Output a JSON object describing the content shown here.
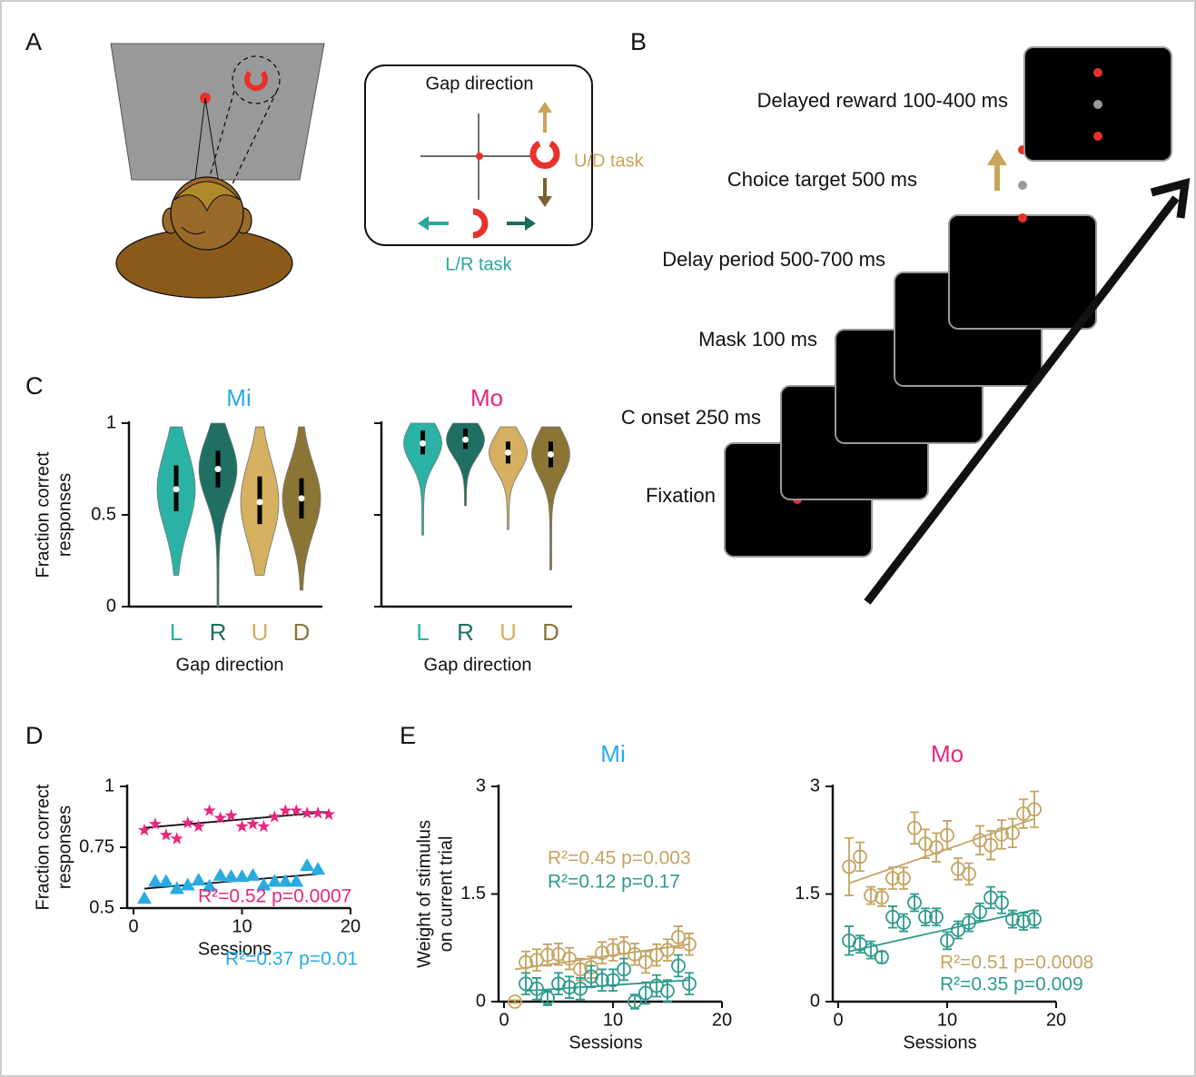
{
  "panel_labels": [
    "A",
    "B",
    "C",
    "D",
    "E"
  ],
  "diagram_a": {
    "gap_direction": "Gap direction",
    "ud_task": "U/D task",
    "lr_task": "L/R task"
  },
  "diagram_b": {
    "steps": [
      "Delayed reward 100-400 ms",
      "Choice target 500 ms",
      "Delay period 500-700 ms",
      "Mask 100 ms",
      "C onset 250 ms",
      "Fixation"
    ]
  },
  "chart_data": [
    {
      "type": "violin",
      "title": "Mi",
      "title_color": "#29abe2",
      "categories": [
        "L",
        "R",
        "U",
        "D"
      ],
      "colors": [
        "#2ab3a5",
        "#1f6f62",
        "#d4b060",
        "#8b7535"
      ],
      "median": [
        0.64,
        0.75,
        0.57,
        0.59
      ],
      "q1": [
        0.52,
        0.65,
        0.45,
        0.48
      ],
      "q3": [
        0.77,
        0.85,
        0.71,
        0.7
      ],
      "min": [
        0.17,
        0,
        0.17,
        0.09
      ],
      "max": [
        0.98,
        1,
        0.98,
        0.98
      ],
      "ylim": [
        0,
        1
      ],
      "yticks": [
        0,
        0.5,
        1
      ],
      "ytick_labels": true,
      "xlabel": "Gap direction",
      "ylabel": [
        "Fraction correct",
        "responses"
      ]
    },
    {
      "type": "violin",
      "title": "Mo",
      "title_color": "#e6287e",
      "categories": [
        "L",
        "R",
        "U",
        "D"
      ],
      "colors": [
        "#2ab3a5",
        "#1f6f62",
        "#d4b060",
        "#8b7535"
      ],
      "median": [
        0.89,
        0.91,
        0.84,
        0.83
      ],
      "q1": [
        0.83,
        0.86,
        0.78,
        0.76
      ],
      "q3": [
        0.96,
        0.97,
        0.9,
        0.9
      ],
      "min": [
        0.39,
        0.55,
        0.42,
        0.2
      ],
      "max": [
        1,
        1,
        0.98,
        0.98
      ],
      "ylim": [
        0,
        1
      ],
      "yticks": [
        0,
        0.5,
        1
      ],
      "ytick_labels": false,
      "xlabel": "Gap direction"
    },
    {
      "type": "scatter",
      "xlim": [
        0,
        20
      ],
      "xticks": [
        0,
        10,
        20
      ],
      "ylim": [
        0.5,
        1
      ],
      "yticks": [
        0.5,
        0.75,
        1
      ],
      "xlabel": "Sessions",
      "ylabel": [
        "Fraction correct",
        "responses"
      ],
      "series": [
        {
          "name": "Mo",
          "color": "#e6287e",
          "marker": "star",
          "x": [
            1,
            2,
            3,
            4,
            5,
            6,
            7,
            8,
            9,
            10,
            11,
            12,
            13,
            14,
            15,
            16,
            17,
            18
          ],
          "values": [
            0.82,
            0.845,
            0.8,
            0.785,
            0.85,
            0.835,
            0.9,
            0.87,
            0.88,
            0.835,
            0.845,
            0.835,
            0.875,
            0.9,
            0.9,
            0.89,
            0.89,
            0.885
          ],
          "fit": {
            "x": [
              1,
              18
            ],
            "y": [
              0.83,
              0.895
            ]
          }
        },
        {
          "name": "Mi",
          "color": "#29abe2",
          "marker": "triangle",
          "x": [
            1,
            2,
            3,
            4,
            5,
            6,
            7,
            8,
            9,
            10,
            11,
            12,
            13,
            14,
            15,
            16,
            17
          ],
          "values": [
            0.54,
            0.61,
            0.61,
            0.58,
            0.595,
            0.615,
            0.59,
            0.635,
            0.63,
            0.63,
            0.635,
            0.595,
            0.61,
            0.61,
            0.61,
            0.675,
            0.66
          ],
          "fit": {
            "x": [
              1,
              17
            ],
            "y": [
              0.58,
              0.64
            ]
          }
        }
      ],
      "annotations": [
        {
          "text": "R²=0.52 p=0.0007",
          "color": "#e6287e"
        },
        {
          "text": "R²=0.37 p=0.01",
          "color": "#29abe2"
        }
      ]
    },
    {
      "type": "scatter",
      "title": "Mi",
      "title_color": "#29abe2",
      "xlim": [
        0,
        20
      ],
      "xticks": [
        0,
        10,
        20
      ],
      "ylim": [
        0,
        3
      ],
      "yticks": [
        0,
        1.5,
        3
      ],
      "xlabel": "Sessions",
      "ylabel": [
        "Weight of stimulus",
        "on current trial"
      ],
      "series": [
        {
          "color": "#c5a462",
          "marker": "circle",
          "x": [
            1,
            2,
            3,
            4,
            5,
            6,
            7,
            8,
            9,
            10,
            11,
            12,
            13,
            14,
            15,
            16,
            17
          ],
          "values": [
            0,
            0.55,
            0.58,
            0.65,
            0.66,
            0.6,
            0.45,
            0.48,
            0.68,
            0.72,
            0.75,
            0.66,
            0.55,
            0.65,
            0.72,
            0.9,
            0.8
          ],
          "errors": [
            0.02,
            0.15,
            0.15,
            0.15,
            0.15,
            0.15,
            0.15,
            0.15,
            0.15,
            0.15,
            0.15,
            0.15,
            0.15,
            0.15,
            0.15,
            0.15,
            0.15
          ],
          "fit": {
            "x": [
              1,
              17
            ],
            "y": [
              0.45,
              0.8
            ]
          }
        },
        {
          "color": "#2e9b8d",
          "marker": "circle",
          "x": [
            2,
            3,
            4,
            5,
            6,
            7,
            8,
            9,
            10,
            11,
            12,
            13,
            14,
            15,
            16,
            17
          ],
          "values": [
            0.25,
            0.18,
            0.05,
            0.25,
            0.2,
            0.18,
            0.35,
            0.3,
            0.3,
            0.45,
            0,
            0.12,
            0.22,
            0.15,
            0.5,
            0.25
          ],
          "errors": [
            0.15,
            0.15,
            0.1,
            0.15,
            0.15,
            0.15,
            0.15,
            0.15,
            0.15,
            0.15,
            0.1,
            0.15,
            0.15,
            0.15,
            0.15,
            0.15
          ],
          "fit": {
            "x": [
              2,
              17
            ],
            "y": [
              0.15,
              0.3
            ]
          }
        }
      ],
      "annotations": [
        {
          "text": "R²=0.45 p=0.003",
          "color": "#c5a462"
        },
        {
          "text": "R²=0.12 p=0.17",
          "color": "#2e9b8d"
        }
      ]
    },
    {
      "type": "scatter",
      "title": "Mo",
      "title_color": "#e6287e",
      "xlim": [
        0,
        20
      ],
      "xticks": [
        0,
        10,
        20
      ],
      "ylim": [
        0,
        3
      ],
      "yticks": [
        0,
        1.5,
        3
      ],
      "xlabel": "Sessions",
      "series": [
        {
          "color": "#c5a462",
          "marker": "circle",
          "x": [
            1,
            2,
            3,
            4,
            5,
            6,
            7,
            8,
            9,
            10,
            11,
            12,
            13,
            14,
            15,
            16,
            17,
            18
          ],
          "values": [
            1.88,
            2.02,
            1.48,
            1.45,
            1.72,
            1.72,
            2.42,
            2.2,
            2.15,
            2.32,
            1.85,
            1.78,
            2.25,
            2.18,
            2.33,
            2.35,
            2.62,
            2.68
          ],
          "errors": [
            0.4,
            0.2,
            0.12,
            0.12,
            0.15,
            0.15,
            0.22,
            0.2,
            0.2,
            0.2,
            0.15,
            0.15,
            0.2,
            0.2,
            0.2,
            0.2,
            0.2,
            0.25
          ],
          "fit": {
            "x": [
              1,
              18
            ],
            "y": [
              1.65,
              2.55
            ]
          }
        },
        {
          "color": "#2e9b8d",
          "marker": "circle",
          "x": [
            1,
            2,
            3,
            4,
            5,
            6,
            7,
            8,
            9,
            10,
            11,
            12,
            13,
            14,
            15,
            16,
            17,
            18
          ],
          "values": [
            0.85,
            0.8,
            0.72,
            0.62,
            1.18,
            1.1,
            1.38,
            1.18,
            1.18,
            0.85,
            1.0,
            1.1,
            1.25,
            1.45,
            1.38,
            1.15,
            1.12,
            1.15
          ],
          "errors": [
            0.2,
            0.12,
            0.12,
            0.08,
            0.15,
            0.12,
            0.12,
            0.12,
            0.12,
            0.12,
            0.12,
            0.12,
            0.12,
            0.15,
            0.15,
            0.12,
            0.12,
            0.12
          ],
          "fit": {
            "x": [
              1,
              18
            ],
            "y": [
              0.7,
              1.28
            ]
          }
        }
      ],
      "annotations": [
        {
          "text": "R²=0.51 p=0.0008",
          "color": "#c5a462"
        },
        {
          "text": "R²=0.35 p=0.009",
          "color": "#2e9b8d"
        }
      ]
    }
  ]
}
